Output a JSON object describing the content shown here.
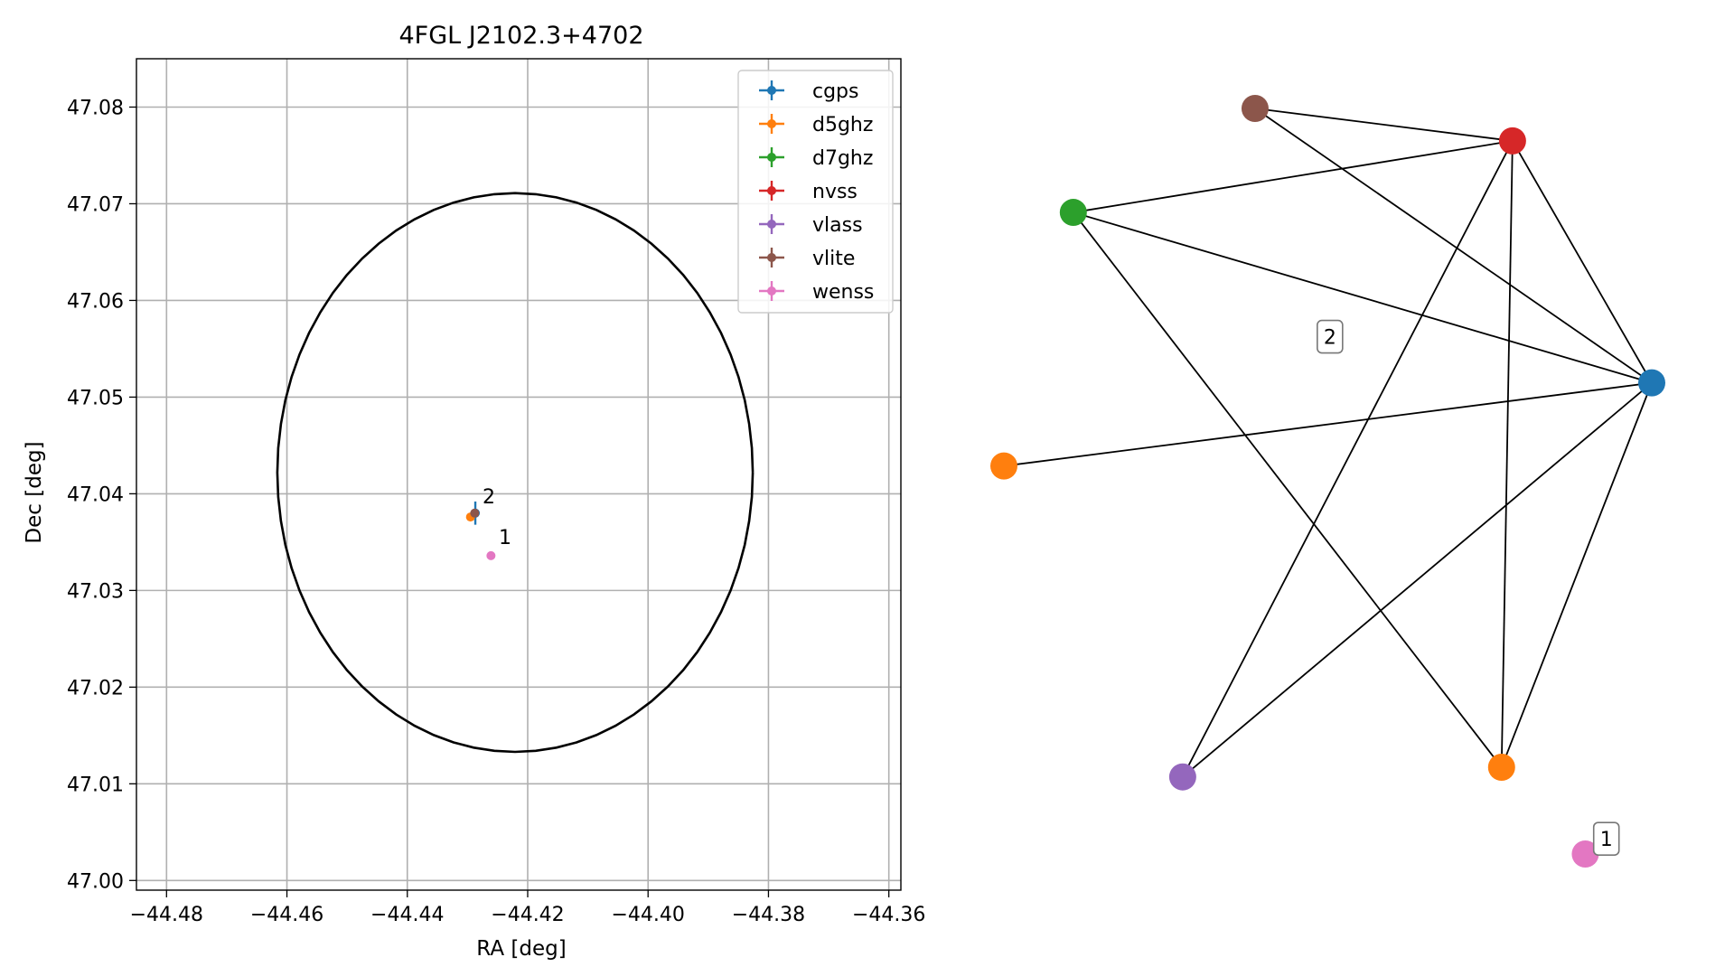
{
  "chart_data": [
    {
      "type": "scatter",
      "title": "4FGL J2102.3+4702",
      "xlabel": "RA [deg]",
      "ylabel": "Dec [deg]",
      "xlim": [
        -44.485,
        -44.358
      ],
      "ylim": [
        46.999,
        47.085
      ],
      "xticks": [
        -44.48,
        -44.46,
        -44.44,
        -44.42,
        -44.4,
        -44.38,
        -44.36
      ],
      "xtick_labels": [
        "−44.48",
        "−44.46",
        "−44.44",
        "−44.42",
        "−44.40",
        "−44.38",
        "−44.36"
      ],
      "yticks": [
        47.0,
        47.01,
        47.02,
        47.03,
        47.04,
        47.05,
        47.06,
        47.07,
        47.08
      ],
      "ytick_labels": [
        "47.00",
        "47.01",
        "47.02",
        "47.03",
        "47.04",
        "47.05",
        "47.06",
        "47.07",
        "47.08"
      ],
      "grid": true,
      "legend_position": "top-right",
      "series": [
        {
          "name": "cgps",
          "color": "#1f77b4",
          "points": [
            {
              "x": -44.4287,
              "y": 47.038,
              "yerr": 0.0012,
              "xerr": 0.0002
            }
          ]
        },
        {
          "name": "d5ghz",
          "color": "#ff7f0e",
          "points": [
            {
              "x": -44.4295,
              "y": 47.0376,
              "yerr": 0.0002,
              "xerr": 0.0003
            }
          ]
        },
        {
          "name": "d7ghz",
          "color": "#2ca02c",
          "points": []
        },
        {
          "name": "nvss",
          "color": "#d62728",
          "points": []
        },
        {
          "name": "vlass",
          "color": "#9467bd",
          "points": []
        },
        {
          "name": "vlite",
          "color": "#8c564b",
          "points": [
            {
              "x": -44.4288,
              "y": 47.038,
              "yerr": 0.0003,
              "xerr": 0.0003
            }
          ]
        },
        {
          "name": "wenss",
          "color": "#e377c2",
          "points": [
            {
              "x": -44.4261,
              "y": 47.0336,
              "yerr": 0.0003,
              "xerr": 0.0003
            }
          ]
        }
      ],
      "ellipse": {
        "center_x": -44.4221,
        "center_y": 47.0422,
        "half_width_x": 0.0395,
        "half_height_y": 0.0289,
        "color": "#000000"
      },
      "annotations": [
        {
          "text": "2",
          "x": -44.4275,
          "y": 47.039
        },
        {
          "text": "1",
          "x": -44.4248,
          "y": 47.0348
        }
      ]
    },
    {
      "type": "network",
      "nodes": [
        {
          "id": "brown",
          "color": "#8c564b",
          "pos": [
            0.147,
            0.941
          ]
        },
        {
          "id": "red",
          "color": "#d62728",
          "pos": [
            0.759,
            0.877
          ]
        },
        {
          "id": "green",
          "color": "#2ca02c",
          "pos": [
            -0.285,
            0.736
          ]
        },
        {
          "id": "blue",
          "color": "#1f77b4",
          "pos": [
            1.09,
            0.4
          ]
        },
        {
          "id": "orange-left",
          "color": "#ff7f0e",
          "pos": [
            -0.45,
            0.236
          ]
        },
        {
          "id": "purple",
          "color": "#9467bd",
          "pos": [
            -0.025,
            -0.377
          ]
        },
        {
          "id": "orange-bottom",
          "color": "#ff7f0e",
          "pos": [
            0.733,
            -0.358
          ]
        },
        {
          "id": "pink",
          "color": "#e377c2",
          "pos": [
            0.932,
            -0.529
          ]
        }
      ],
      "edges": [
        [
          "brown",
          "red"
        ],
        [
          "brown",
          "blue"
        ],
        [
          "green",
          "red"
        ],
        [
          "green",
          "blue"
        ],
        [
          "green",
          "orange-bottom"
        ],
        [
          "red",
          "blue"
        ],
        [
          "red",
          "purple"
        ],
        [
          "red",
          "orange-bottom"
        ],
        [
          "blue",
          "orange-left"
        ],
        [
          "blue",
          "purple"
        ],
        [
          "blue",
          "orange-bottom"
        ]
      ],
      "labels": [
        {
          "text": "2",
          "pos": [
            0.325,
            0.491
          ]
        },
        {
          "text": "1",
          "pos": [
            0.982,
            -0.499
          ]
        }
      ]
    }
  ]
}
